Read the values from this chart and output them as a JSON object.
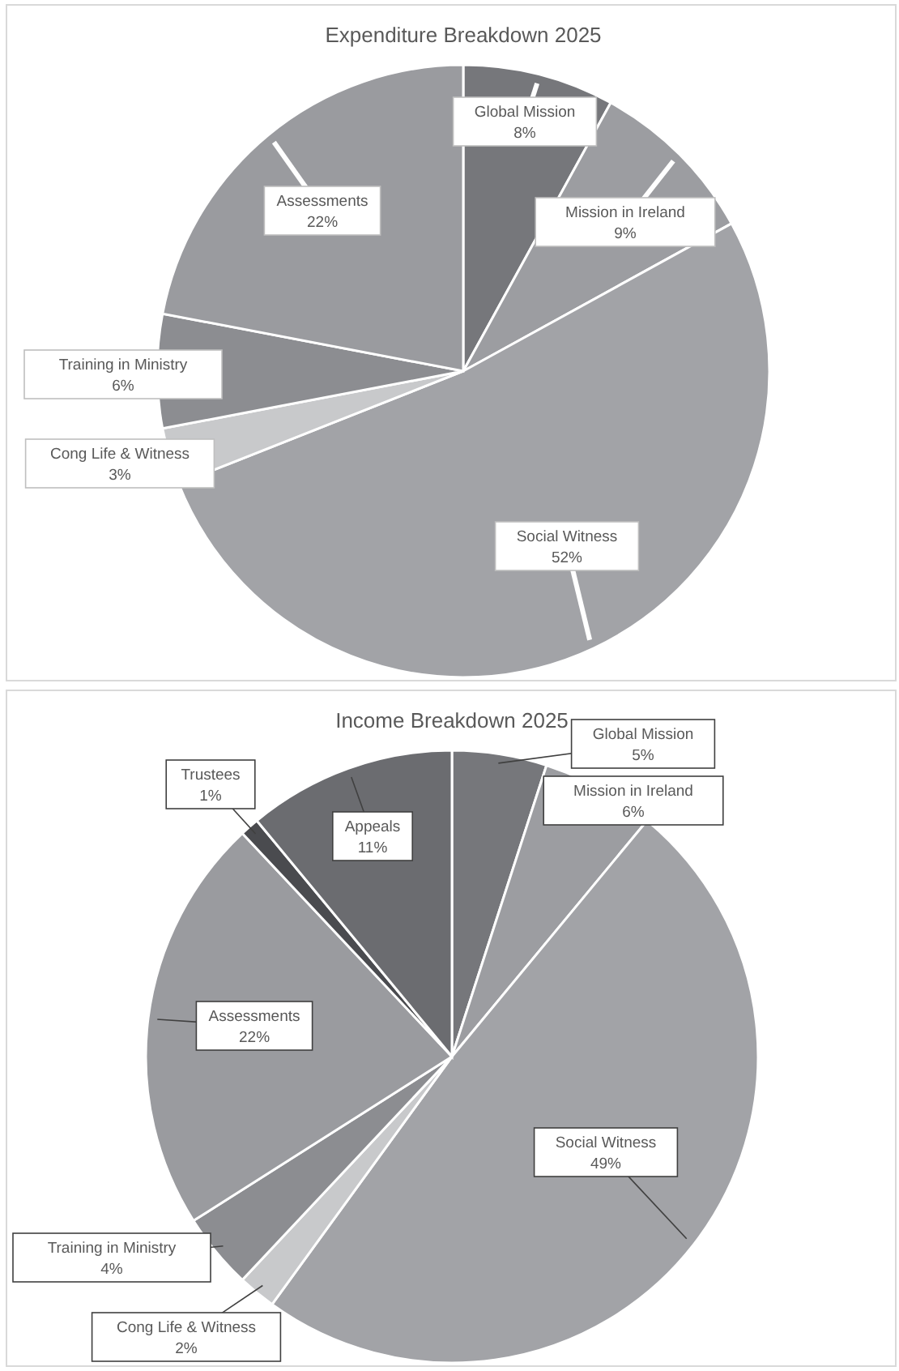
{
  "chart_data": [
    {
      "type": "pie",
      "title": "Expenditure Breakdown 2025",
      "categories": [
        "Global Mission",
        "Mission in Ireland",
        "Social Witness",
        "Cong Life & Witness",
        "Training in Ministry",
        "Assessments"
      ],
      "values": [
        8,
        9,
        52,
        3,
        6,
        22
      ],
      "value_labels": [
        "8%",
        "9%",
        "52%",
        "3%",
        "6%",
        "22%"
      ],
      "colors": [
        "#76777b",
        "#9c9da1",
        "#a2a3a7",
        "#c8c9cb",
        "#8c8d91",
        "#9a9b9f"
      ]
    },
    {
      "type": "pie",
      "title": "Income Breakdown 2025",
      "categories": [
        "Global Mission",
        "Mission in Ireland",
        "Social Witness",
        "Cong Life & Witness",
        "Training in Ministry",
        "Assessments",
        "Trustees",
        "Appeals"
      ],
      "values": [
        5,
        6,
        49,
        2,
        4,
        22,
        1,
        11
      ],
      "value_labels": [
        "5%",
        "6%",
        "49%",
        "2%",
        "4%",
        "22%",
        "1%",
        "11%"
      ],
      "colors": [
        "#76777b",
        "#9c9da1",
        "#a2a3a7",
        "#c8c9cb",
        "#8c8d91",
        "#9a9b9f",
        "#4a4b4f",
        "#6b6c70"
      ]
    }
  ]
}
